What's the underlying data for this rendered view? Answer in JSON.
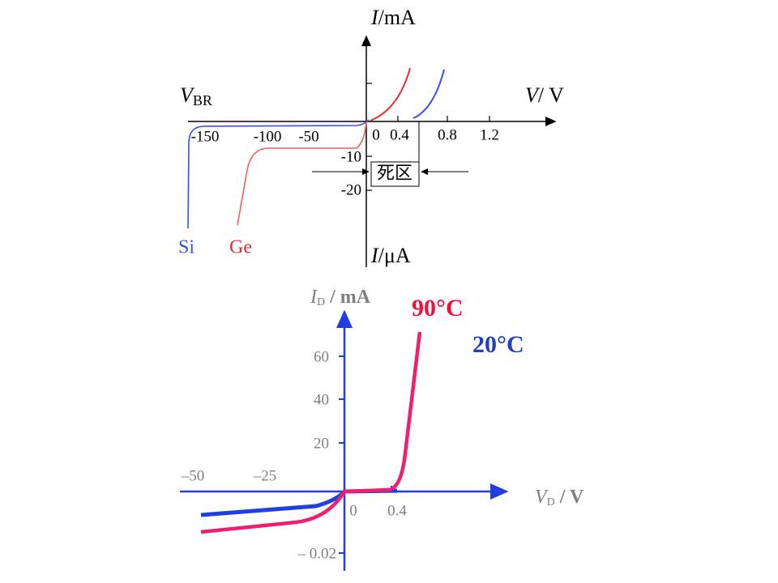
{
  "top": {
    "y_upper_label": {
      "var": "I",
      "unit": "/mA"
    },
    "x_label": {
      "var": "V",
      "unit": "/ V"
    },
    "breakdown_label": {
      "var": "V",
      "sub": "BR"
    },
    "y_lower_label": {
      "var": "I",
      "slash": "/",
      "unit": "μA"
    },
    "x_ticks": [
      "-150",
      "-100",
      "-50",
      "0",
      "0.4",
      "0.8",
      "1.2"
    ],
    "y_ticks": [
      "-10",
      "-20"
    ],
    "dead_zone": "死区",
    "series": [
      "Si",
      "Ge"
    ]
  },
  "bottom": {
    "y_label": {
      "var": "I",
      "sub": "D",
      "unit": "/ mA"
    },
    "x_label": {
      "var": "V",
      "sub": "D",
      "unit": "/ V"
    },
    "legend": [
      "90°C",
      "20°C"
    ],
    "y_ticks": [
      "60",
      "40",
      "20",
      "– 0.02"
    ],
    "x_ticks": [
      "–50",
      "–25",
      "0",
      "0.4"
    ]
  }
}
